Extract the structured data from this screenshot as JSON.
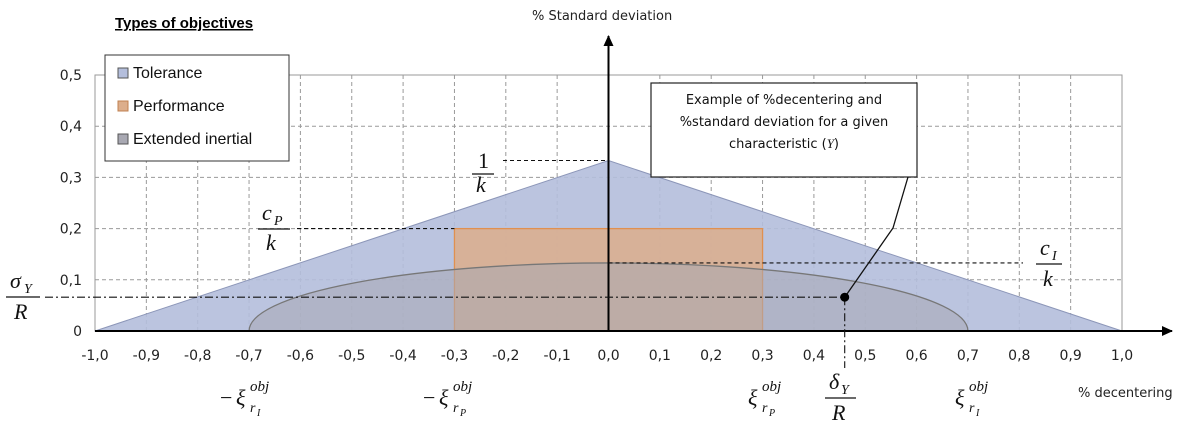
{
  "chart_data": {
    "type": "area",
    "title": "Types of objectives",
    "xlabel": "% decentering",
    "ylabel": "% Standard deviation",
    "xlim": [
      -1.0,
      1.0
    ],
    "ylim": [
      0,
      0.5
    ],
    "x_ticks": [
      "-1,0",
      "-0,9",
      "-0,8",
      "-0,7",
      "-0,6",
      "-0,5",
      "-0,4",
      "-0,3",
      "-0,2",
      "-0,1",
      "0,0",
      "0,1",
      "0,2",
      "0,3",
      "0,4",
      "0,5",
      "0,6",
      "0,7",
      "0,8",
      "0,9",
      "1,0"
    ],
    "y_ticks": [
      "0",
      "0,1",
      "0,2",
      "0,3",
      "0,4",
      "0,5"
    ],
    "grid": true,
    "legend_position": "top-left",
    "series": [
      {
        "name": "Tolerance",
        "shape": "triangle",
        "color": "#b4bedc",
        "points": [
          [
            -1.0,
            0
          ],
          [
            0,
            0.333
          ],
          [
            1.0,
            0
          ]
        ]
      },
      {
        "name": "Performance",
        "shape": "rectangle",
        "color": "#dcae8c",
        "x_range": [
          -0.3,
          0.3
        ],
        "y": 0.2
      },
      {
        "name": "Extended inertial",
        "shape": "half-ellipse",
        "color": "#a8a8b2",
        "x_range": [
          -0.7,
          0.7
        ],
        "y_max": 0.133
      }
    ],
    "example_point": {
      "x": 0.46,
      "y": 0.066
    },
    "annotation": {
      "lines": [
        "Example of %decentering and",
        "%standard deviation for a given",
        "characteristic (",
        "Y",
        ")"
      ]
    },
    "math_labels": {
      "one": "1",
      "k": "k",
      "c": "c",
      "sub_P": "P",
      "sub_I": "I",
      "sigma": "σ",
      "delta": "δ",
      "sub_Y": "Y",
      "R": "R",
      "xi": "ξ",
      "obj": "obj",
      "r": "r",
      "minus": "−"
    }
  }
}
